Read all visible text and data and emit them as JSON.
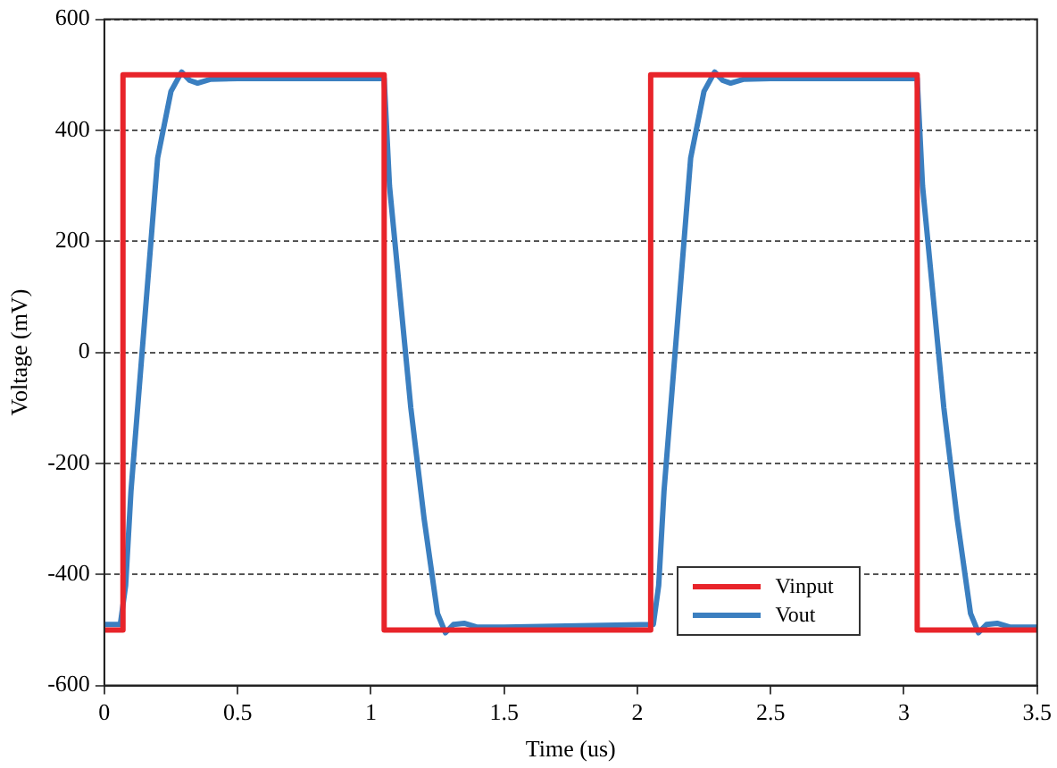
{
  "chart_data": {
    "type": "line",
    "xlabel": "Time (us)",
    "ylabel": "Voltage (mV)",
    "xlim": [
      0,
      3.5
    ],
    "xticks": [
      0,
      0.5,
      1,
      1.5,
      2,
      2.5,
      3,
      3.5
    ],
    "ylim": [
      -600,
      600
    ],
    "yticks": [
      -600,
      -400,
      -200,
      0,
      200,
      400,
      600
    ],
    "grid": "y",
    "legend": "bottom right",
    "marker": "none",
    "line_style": "solid",
    "series": [
      {
        "name": "Vinput",
        "color": "#e8242a",
        "x": [
          0,
          0.07,
          0.07,
          1.05,
          1.05,
          2.05,
          2.05,
          3.05,
          3.05,
          3.5
        ],
        "values": [
          -500,
          -500,
          500,
          500,
          -500,
          -500,
          500,
          500,
          -500,
          -500
        ]
      },
      {
        "name": "Vout",
        "color": "#3b7fc0",
        "x": [
          0,
          0.06,
          0.08,
          0.1,
          0.15,
          0.2,
          0.25,
          0.29,
          0.32,
          0.35,
          0.4,
          0.5,
          1.05,
          1.07,
          1.1,
          1.15,
          1.2,
          1.25,
          1.28,
          1.31,
          1.35,
          1.4,
          1.5,
          2.06,
          2.08,
          2.1,
          2.15,
          2.2,
          2.25,
          2.29,
          2.32,
          2.35,
          2.4,
          2.5,
          3.05,
          3.07,
          3.1,
          3.15,
          3.2,
          3.25,
          3.28,
          3.31,
          3.35,
          3.4,
          3.5
        ],
        "values": [
          -490,
          -490,
          -420,
          -250,
          50,
          350,
          470,
          505,
          490,
          485,
          492,
          493,
          493,
          300,
          150,
          -100,
          -300,
          -470,
          -505,
          -490,
          -488,
          -495,
          -495,
          -490,
          -420,
          -250,
          50,
          350,
          470,
          505,
          490,
          485,
          492,
          493,
          493,
          300,
          150,
          -100,
          -300,
          -470,
          -505,
          -490,
          -488,
          -495,
          -495
        ]
      }
    ]
  }
}
